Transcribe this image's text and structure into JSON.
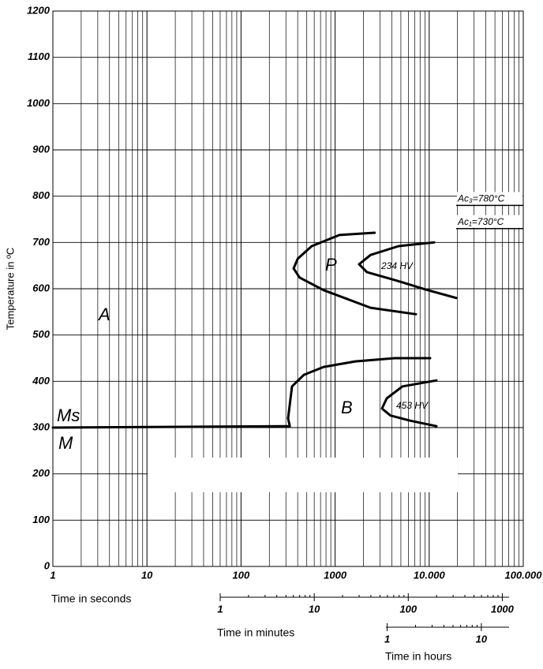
{
  "chart_data": {
    "type": "line",
    "ylabel": "Temperature in ºC",
    "xlabel": "Time in seconds",
    "log_x": true,
    "grid": true,
    "xlim": [
      1,
      100000
    ],
    "ylim": [
      0,
      1200
    ],
    "xticks": [
      1,
      10,
      100,
      1000,
      {
        "value": 10000,
        "label": "10.000"
      },
      {
        "value": 100000,
        "label": "100.000"
      }
    ],
    "yticks": [
      0,
      100,
      200,
      300,
      400,
      500,
      600,
      700,
      800,
      900,
      1000,
      1100,
      1200
    ],
    "series": [
      {
        "color": "#000000",
        "x": [
          1,
          290,
          330,
          316,
          348,
          466,
          755,
          1633,
          4295,
          10230
        ],
        "y": [
          300,
          303,
          303,
          320,
          389,
          414,
          431,
          443,
          450,
          450
        ]
      },
      {
        "color": "#000000",
        "x": [
          2630,
          1110,
          565,
          401,
          362,
          420,
          755,
          2380,
          7230
        ],
        "y": [
          721,
          716,
          692,
          665,
          644,
          624,
          597,
          559,
          545
        ]
      },
      {
        "color": "#000000",
        "x": [
          11270,
          4720,
          2380,
          1800,
          2180,
          4295,
          9300,
          19360
        ],
        "y": [
          700,
          692,
          673,
          653,
          636,
          619,
          598,
          580
        ]
      },
      {
        "color": "#000000",
        "x": [
          11940,
          5200,
          3540,
          3150,
          3870,
          6270,
          11940
        ],
        "y": [
          402,
          389,
          363,
          341,
          326,
          315,
          303
        ]
      }
    ],
    "reference_lines": [
      {
        "label": "Ac₃=780°C",
        "value": 780
      },
      {
        "label": "Ac₁=730°C",
        "value": 730
      }
    ],
    "annotations": [
      "A",
      "P",
      "234 HV",
      "B",
      "453 HV",
      "Ms",
      "M"
    ],
    "minutes_axis": {
      "label": "Time in minutes",
      "xlim": [
        1,
        1180
      ],
      "xticks": [
        1,
        10,
        100,
        1000
      ]
    },
    "hours_axis": {
      "label": "Time in hours",
      "xlim": [
        0.97,
        19.7
      ],
      "xticks": [
        1,
        10
      ]
    }
  }
}
